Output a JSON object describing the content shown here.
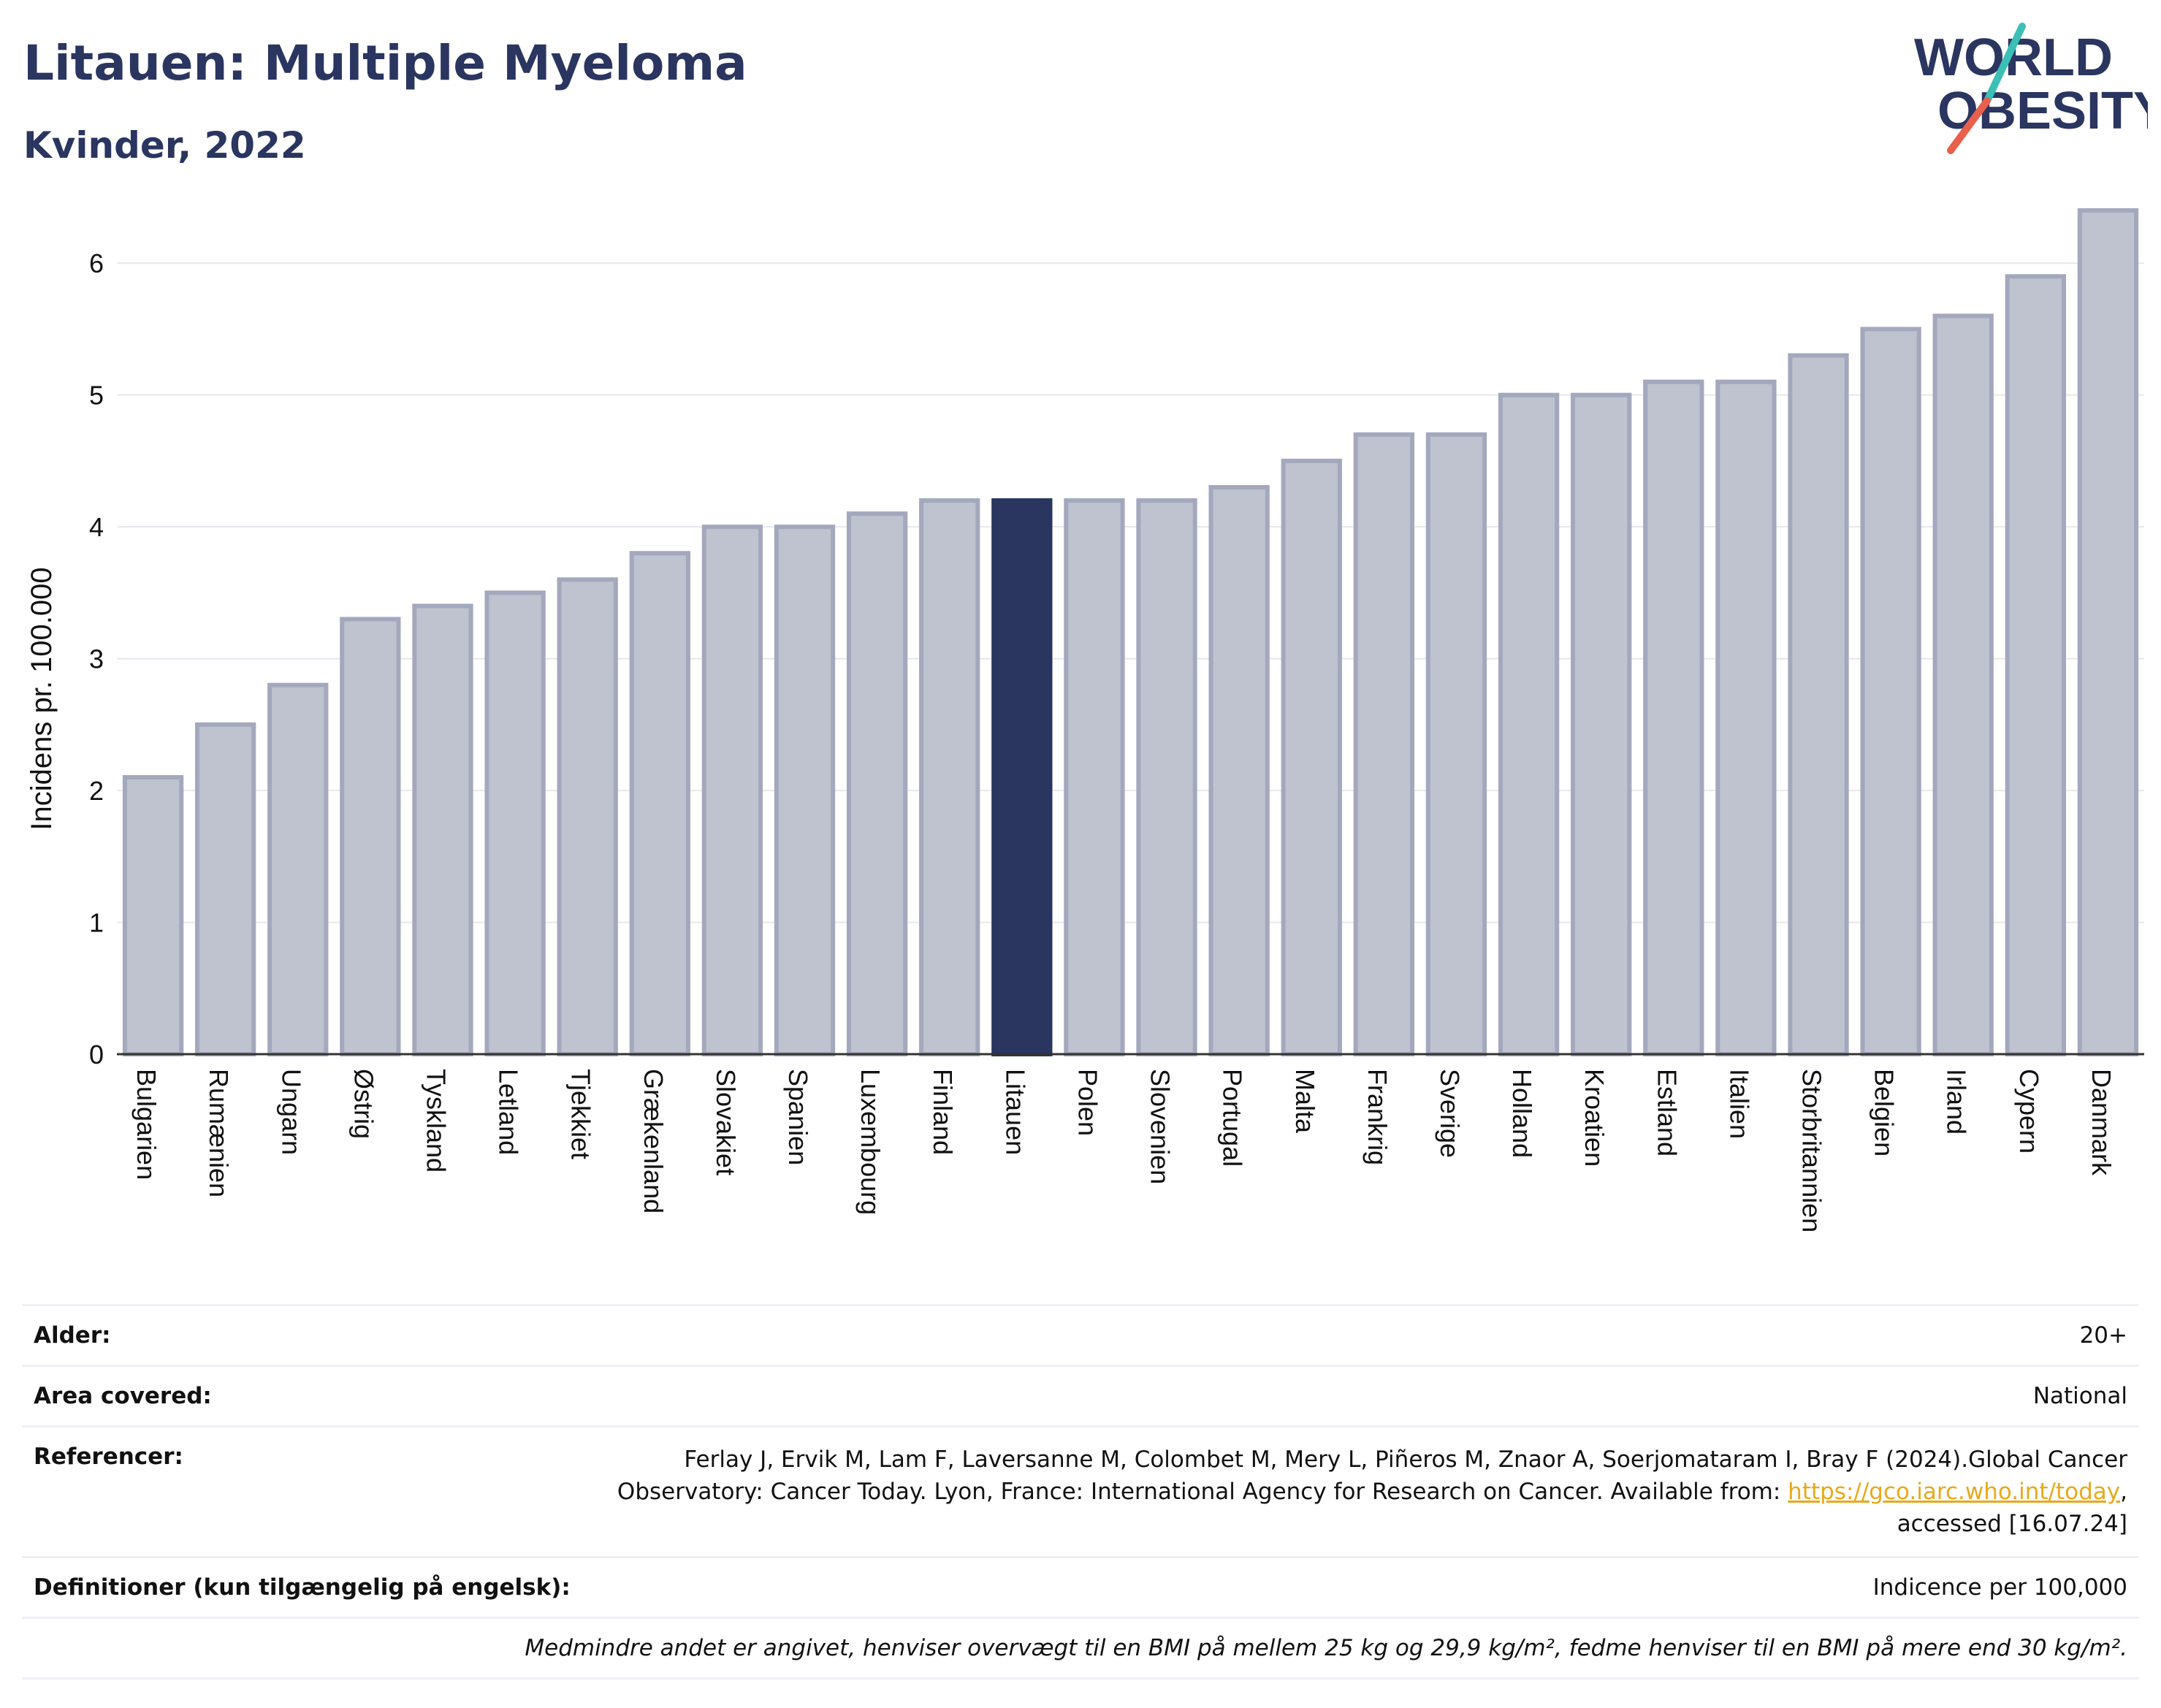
{
  "header": {
    "title": "Litauen: Multiple Myeloma",
    "subtitle": "Kvinder, 2022"
  },
  "logo": {
    "line1": "WORLD",
    "line2": "OBESITY",
    "icon": "world-obesity-logo"
  },
  "colors": {
    "bar_fill": "#bfc2cf",
    "bar_stroke": "#a3a8bd",
    "highlight": "#2a3560",
    "text": "#2a3560",
    "link": "#e8a91c",
    "logo_slash_teal": "#3bbfb7",
    "logo_slash_red": "#e8604c"
  },
  "chart_data": {
    "type": "bar",
    "title": "Litauen: Multiple Myeloma",
    "subtitle": "Kvinder, 2022",
    "xlabel": "",
    "ylabel": "Incidens pr. 100.000",
    "ylim": [
      0,
      6.5
    ],
    "yticks": [
      0,
      1,
      2,
      3,
      4,
      5,
      6
    ],
    "grid": true,
    "highlight_category": "Litauen",
    "categories": [
      "Bulgarien",
      "Rumænien",
      "Ungarn",
      "Østrig",
      "Tyskland",
      "Letland",
      "Tjekkiet",
      "Grækenland",
      "Slovakiet",
      "Spanien",
      "Luxembourg",
      "Finland",
      "Litauen",
      "Polen",
      "Slovenien",
      "Portugal",
      "Malta",
      "Frankrig",
      "Sverige",
      "Holland",
      "Kroatien",
      "Estland",
      "Italien",
      "Storbritannien",
      "Belgien",
      "Irland",
      "Cypern",
      "Danmark"
    ],
    "values": [
      2.1,
      2.5,
      2.8,
      3.3,
      3.4,
      3.5,
      3.6,
      3.8,
      4.0,
      4.0,
      4.1,
      4.2,
      4.2,
      4.2,
      4.2,
      4.3,
      4.5,
      4.7,
      4.7,
      5.0,
      5.0,
      5.1,
      5.1,
      5.3,
      5.5,
      5.6,
      5.9,
      6.4
    ]
  },
  "info": {
    "age_label": "Alder:",
    "age_value": "20+",
    "area_label": "Area covered:",
    "area_value": "National",
    "ref_label": "Referencer:",
    "ref_text_1": "Ferlay J, Ervik M, Lam F, Laversanne M, Colombet M, Mery L, Piñeros M, Znaor A, Soerjomataram I, Bray F (2024).Global Cancer",
    "ref_text_2": "Observatory: Cancer Today. Lyon, France: International Agency for Research on Cancer. Available from: ",
    "ref_link": "https://gco.iarc.who.int/today",
    "ref_text_3": ",",
    "ref_text_4": "accessed [16.07.24]",
    "def_label": "Definitioner (kun tilgængelig på engelsk):",
    "def_value": "Indicence per 100,000",
    "footnote": "Medmindre andet er angivet, henviser overvægt til en BMI på mellem 25 kg og 29,9 kg/m², fedme henviser til en BMI på mere end 30 kg/m²."
  }
}
